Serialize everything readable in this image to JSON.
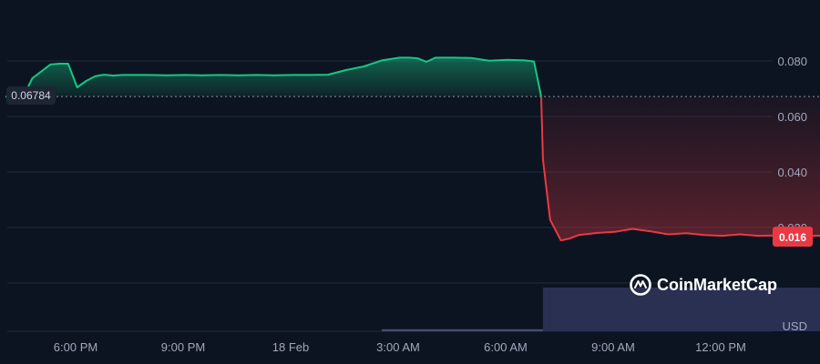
{
  "chart_data": {
    "type": "area",
    "title": "",
    "xlabel": "",
    "ylabel": "",
    "currency_label": "USD",
    "x_tick_labels": [
      "6:00 PM",
      "9:00 PM",
      "18 Feb",
      "3:00 AM",
      "6:00 AM",
      "9:00 AM",
      "12:00 PM"
    ],
    "y_tick_labels": [
      "0.080",
      "0.060",
      "0.040",
      "0.020"
    ],
    "ylim": [
      0,
      0.101
    ],
    "grid": true,
    "reference_price": 0.06784,
    "reference_label": "0.06784",
    "current_price_label": "0.016",
    "brand": "CoinMarketCap",
    "colors": {
      "up": "#16c784",
      "down": "#ea3943",
      "volume": "#2c3358"
    },
    "price_series": {
      "x_hours_from_start": [
        0,
        0.25,
        0.5,
        0.75,
        1,
        1.25,
        1.5,
        1.75,
        2,
        2.25,
        2.5,
        2.6,
        2.75,
        3,
        3.25,
        3.5,
        4,
        4.5,
        5,
        5.5,
        6,
        6.5,
        7,
        7.5,
        8,
        8.5,
        9,
        9.5,
        10,
        10.5,
        11,
        11.25,
        11.5,
        11.75,
        12,
        12.5,
        13,
        13.5,
        14,
        14.5,
        14.75,
        14.95,
        15.0,
        15.2,
        15.5,
        15.75,
        16,
        16.5,
        17,
        17.5,
        18,
        18.5,
        19,
        19.5,
        20,
        20.5,
        21,
        21.5,
        22,
        22.5,
        23,
        23.5,
        24,
        24.5,
        25,
        25.3
      ],
      "values": [
        0.0678,
        0.0678,
        0.0679,
        0.0745,
        0.077,
        0.0795,
        0.0798,
        0.0798,
        0.0712,
        0.0735,
        0.0752,
        0.0755,
        0.0758,
        0.0755,
        0.0757,
        0.0757,
        0.0757,
        0.0756,
        0.0757,
        0.0756,
        0.0757,
        0.0756,
        0.0757,
        0.0756,
        0.0757,
        0.0757,
        0.0758,
        0.0775,
        0.0788,
        0.081,
        0.082,
        0.082,
        0.0818,
        0.0805,
        0.082,
        0.082,
        0.0819,
        0.0809,
        0.0812,
        0.081,
        0.0806,
        0.0678,
        0.045,
        0.023,
        0.0155,
        0.0162,
        0.0175,
        0.0182,
        0.0186,
        0.0197,
        0.0188,
        0.0177,
        0.0181,
        0.0175,
        0.0172,
        0.0177,
        0.0172,
        0.0173,
        0.0174,
        0.0172,
        0.0173,
        0.0174,
        0.0175,
        0.0171,
        0.0172,
        0.016
      ]
    },
    "volume_series": {
      "x_hours_from_start": [
        10.5,
        15.0,
        15.2,
        25.3
      ],
      "values": [
        0.3,
        1.5,
        32,
        32
      ]
    }
  }
}
